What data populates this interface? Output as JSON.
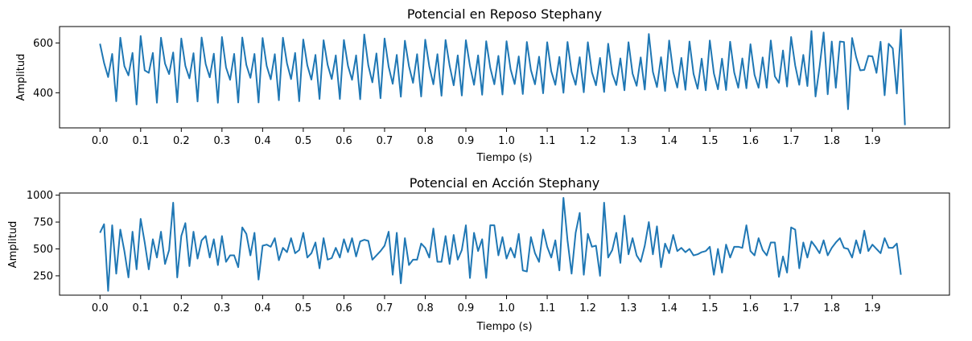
{
  "charts": [
    {
      "title": "Potencial en Reposo Stephany",
      "xlabel": "Tiempo (s)",
      "ylabel": "Amplitud",
      "type": "line",
      "color": "#1f77b4",
      "xlim": [
        -0.0995,
        2.0895
      ],
      "ylim": [
        259,
        666
      ],
      "xticks": [
        0.0,
        0.1,
        0.2,
        0.3,
        0.4,
        0.5,
        0.6,
        0.7,
        0.8,
        0.9,
        1.0,
        1.1,
        1.2,
        1.3,
        1.4,
        1.5,
        1.6,
        1.7,
        1.8,
        1.9
      ],
      "yticks": [
        400,
        600
      ],
      "dt": 0.01,
      "values": [
        597,
        520,
        463,
        556,
        366,
        621,
        507,
        470,
        560,
        353,
        628,
        490,
        480,
        560,
        360,
        621,
        517,
        475,
        562,
        362,
        618,
        508,
        458,
        559,
        365,
        622,
        515,
        462,
        557,
        360,
        624,
        502,
        452,
        556,
        361,
        622,
        512,
        460,
        556,
        361,
        620,
        508,
        454,
        555,
        370,
        621,
        518,
        455,
        560,
        366,
        614,
        510,
        453,
        552,
        375,
        611,
        512,
        455,
        550,
        375,
        612,
        508,
        452,
        550,
        374,
        634,
        510,
        442,
        558,
        378,
        618,
        505,
        436,
        552,
        384,
        609,
        507,
        440,
        555,
        385,
        613,
        506,
        434,
        555,
        388,
        612,
        509,
        430,
        550,
        389,
        611,
        508,
        432,
        550,
        392,
        607,
        500,
        434,
        548,
        393,
        607,
        494,
        435,
        546,
        395,
        604,
        491,
        434,
        545,
        398,
        603,
        486,
        432,
        544,
        400,
        604,
        484,
        432,
        543,
        402,
        603,
        482,
        430,
        540,
        403,
        597,
        477,
        431,
        538,
        410,
        603,
        477,
        428,
        542,
        413,
        636,
        484,
        423,
        543,
        407,
        610,
        483,
        421,
        540,
        412,
        606,
        476,
        416,
        537,
        410,
        610,
        478,
        414,
        537,
        411,
        605,
        482,
        420,
        538,
        418,
        595,
        472,
        420,
        542,
        420,
        610,
        466,
        440,
        570,
        425,
        624,
        510,
        432,
        552,
        427,
        648,
        385,
        504,
        642,
        394,
        606,
        420,
        606,
        604,
        334,
        620,
        543,
        490,
        492,
        548,
        546,
        480,
        605,
        390,
        597,
        578,
        397,
        654,
        270
      ]
    },
    {
      "title": "Potencial en Acción Stephany",
      "xlabel": "Tiempo (s)",
      "ylabel": "Amplitud",
      "type": "line",
      "color": "#1f77b4",
      "xlim": [
        -0.0995,
        2.0895
      ],
      "ylim": [
        70,
        1020
      ],
      "xticks": [
        0.0,
        0.1,
        0.2,
        0.3,
        0.4,
        0.5,
        0.6,
        0.7,
        0.8,
        0.9,
        1.0,
        1.1,
        1.2,
        1.3,
        1.4,
        1.5,
        1.6,
        1.7,
        1.8,
        1.9
      ],
      "yticks": [
        250,
        500,
        750,
        1000
      ],
      "dt": 0.01,
      "values": [
        650,
        730,
        110,
        720,
        270,
        680,
        480,
        235,
        660,
        310,
        780,
        560,
        310,
        590,
        420,
        660,
        360,
        490,
        930,
        235,
        620,
        740,
        340,
        660,
        410,
        580,
        620,
        420,
        590,
        350,
        620,
        380,
        440,
        440,
        330,
        700,
        640,
        440,
        650,
        215,
        530,
        540,
        520,
        600,
        395,
        510,
        470,
        600,
        460,
        490,
        650,
        420,
        460,
        560,
        320,
        600,
        400,
        415,
        510,
        420,
        590,
        470,
        600,
        430,
        570,
        585,
        575,
        400,
        440,
        480,
        530,
        660,
        260,
        650,
        180,
        600,
        350,
        400,
        400,
        550,
        510,
        420,
        690,
        380,
        380,
        620,
        360,
        630,
        400,
        490,
        720,
        230,
        650,
        480,
        590,
        230,
        720,
        720,
        440,
        610,
        410,
        510,
        420,
        640,
        300,
        290,
        610,
        460,
        380,
        680,
        520,
        420,
        580,
        300,
        975,
        580,
        270,
        650,
        835,
        260,
        640,
        520,
        530,
        250,
        930,
        420,
        490,
        650,
        370,
        810,
        450,
        600,
        440,
        380,
        530,
        750,
        450,
        710,
        330,
        550,
        460,
        630,
        480,
        510,
        470,
        500,
        440,
        450,
        470,
        480,
        520,
        260,
        500,
        280,
        540,
        420,
        520,
        520,
        510,
        720,
        480,
        440,
        600,
        490,
        440,
        560,
        560,
        240,
        430,
        280,
        700,
        680,
        320,
        560,
        420,
        570,
        520,
        460,
        580,
        440,
        510,
        560,
        600,
        510,
        500,
        420,
        580,
        460,
        670,
        480,
        540,
        500,
        460,
        600,
        510,
        510,
        550,
        260
      ]
    }
  ]
}
